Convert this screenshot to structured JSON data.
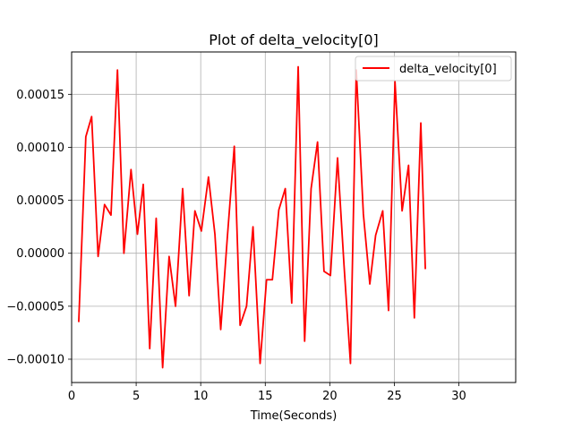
{
  "chart_data": {
    "type": "line",
    "title": "Plot of delta_velocity[0]",
    "xlabel": "Time(Seconds)",
    "ylabel": "",
    "xlim": [
      0,
      34.4
    ],
    "ylim": [
      -0.000122,
      0.00019
    ],
    "xticks": [
      0,
      5,
      10,
      15,
      20,
      25,
      30
    ],
    "yticks": [
      -0.0001,
      -5e-05,
      0.0,
      5e-05,
      0.0001,
      0.00015
    ],
    "ytick_labels": [
      "−0.00010",
      "−0.00005",
      "0.00000",
      "0.00005",
      "0.00010",
      "0.00015"
    ],
    "grid": true,
    "legend_position": "top-right",
    "series": [
      {
        "name": "delta_velocity[0]",
        "color": "#ff0000",
        "x": [
          0.55,
          1.1,
          1.55,
          2.05,
          2.55,
          3.05,
          3.55,
          4.05,
          4.6,
          5.1,
          5.55,
          6.05,
          6.55,
          7.05,
          7.55,
          8.05,
          8.6,
          9.1,
          9.55,
          10.05,
          10.6,
          11.1,
          11.55,
          12.05,
          12.6,
          13.05,
          13.55,
          14.05,
          14.6,
          15.1,
          15.55,
          16.05,
          16.55,
          17.05,
          17.55,
          18.05,
          18.55,
          19.05,
          19.55,
          20.05,
          20.6,
          21.1,
          21.6,
          22.05,
          22.6,
          23.1,
          23.55,
          24.1,
          24.55,
          25.05,
          25.6,
          26.1,
          26.55,
          27.05,
          27.4
        ],
        "y": [
          -6.5e-05,
          0.00011,
          0.000129,
          -3e-06,
          4.6e-05,
          3.6e-05,
          0.000173,
          0.0,
          7.9e-05,
          1.8e-05,
          6.5e-05,
          -9e-05,
          3.3e-05,
          -0.000108,
          -3e-06,
          -5e-05,
          6.1e-05,
          -4e-05,
          4e-05,
          2.1e-05,
          7.2e-05,
          1.8e-05,
          -7.2e-05,
          1.3e-05,
          0.000101,
          -6.8e-05,
          -5e-05,
          2.5e-05,
          -0.000104,
          -2.5e-05,
          -2.5e-05,
          4.1e-05,
          6.1e-05,
          -4.7e-05,
          0.000176,
          -8.3e-05,
          6.1e-05,
          0.000105,
          -1.7e-05,
          -2.1e-05,
          9e-05,
          -1.1e-05,
          -0.000104,
          0.000173,
          3.7e-05,
          -2.9e-05,
          1.7e-05,
          4e-05,
          -5.4e-05,
          0.000162,
          4e-05,
          8.3e-05,
          -6.1e-05,
          0.000123,
          -1.5e-05
        ]
      }
    ]
  }
}
